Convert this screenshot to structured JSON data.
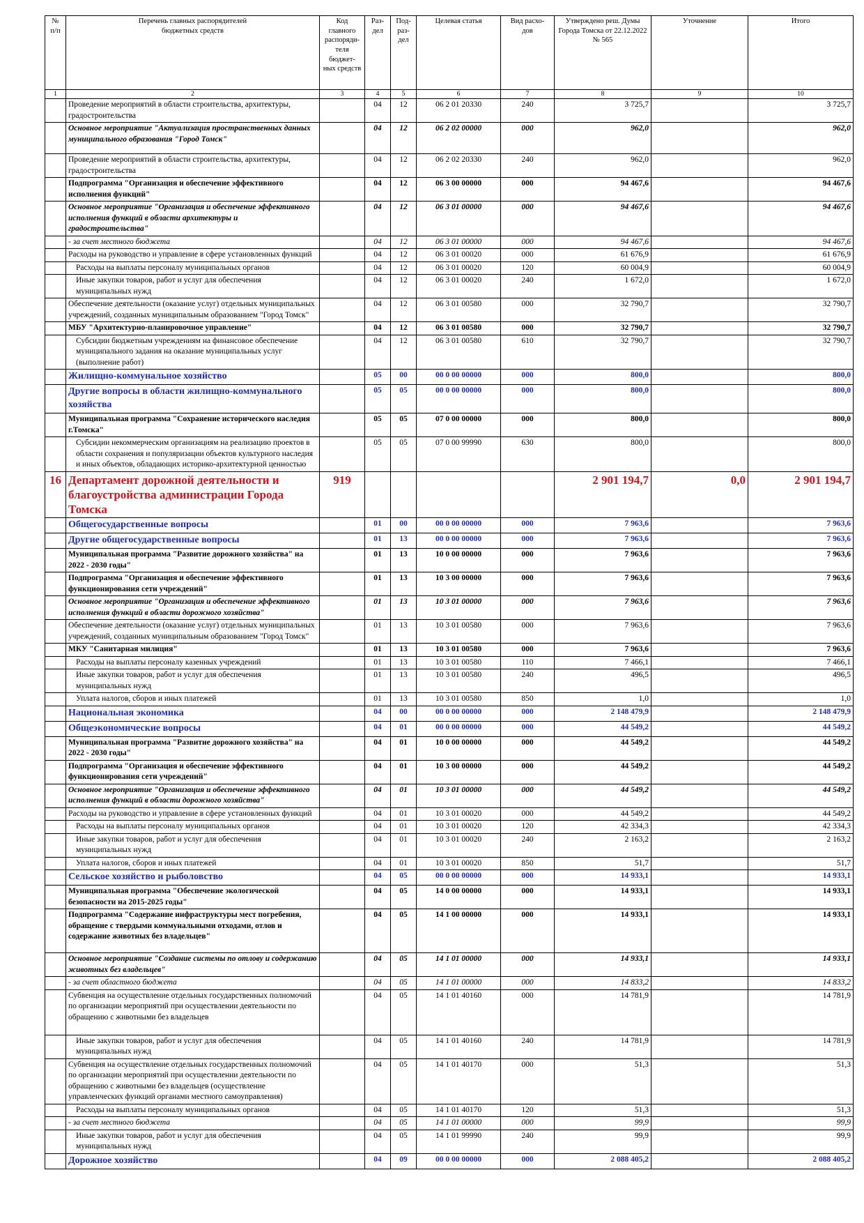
{
  "header": {
    "num": "№\nп/п",
    "name": "Перечень главных распорядителей\nбюджетных средств",
    "code": "Код главного\nраспоряди-\nтеля бюджет-\nных средств",
    "razdel": "Раз-\nдел",
    "podrazdel": "Под-\nраз-\nдел",
    "target": "Целевая статья",
    "vid": "Вид расхо-\nдов",
    "approved": "Утверждено реш. Думы\nГорода Томска от 22.12.2022\n№ 565",
    "clarification": "Уточнение",
    "total": "Итого"
  },
  "column_numbers": [
    "1",
    "2",
    "3",
    "4",
    "5",
    "6",
    "7",
    "8",
    "9",
    "10"
  ],
  "rows": [
    {
      "style": "",
      "num": "",
      "name": "Проведение мероприятий в области строительства, архитектуры, градостроительства",
      "code": "",
      "razdel": "04",
      "podrazdel": "12",
      "target": "06 2 01 20330",
      "vid": "240",
      "approved": "3 725,7",
      "clar": "",
      "total": "3 725,7"
    },
    {
      "style": "bi",
      "num": "",
      "name": "Основное мероприятие \"Актуализация пространственных данных муниципального образования \"Город Томск\"",
      "code": "",
      "razdel": "04",
      "podrazdel": "12",
      "target": "06 2 02 00000",
      "vid": "000",
      "approved": "962,0",
      "clar": "",
      "total": "962,0",
      "h": 42
    },
    {
      "style": "",
      "num": "",
      "name": "Проведение мероприятий в области строительства, архитектуры, градостроительства",
      "code": "",
      "razdel": "04",
      "podrazdel": "12",
      "target": "06 2 02 20330",
      "vid": "240",
      "approved": "962,0",
      "clar": "",
      "total": "962,0"
    },
    {
      "style": "bold",
      "num": "",
      "name": "Подпрограмма \"Организация и обеспечение эффективного исполнения функций\"",
      "code": "",
      "razdel": "04",
      "podrazdel": "12",
      "target": "06 3 00 00000",
      "vid": "000",
      "approved": "94 467,6",
      "clar": "",
      "total": "94 467,6"
    },
    {
      "style": "bi",
      "num": "",
      "name": "Основное мероприятие \"Организация и обеспечение эффективного исполнения функций в области архитектуры и градостроительства\"",
      "code": "",
      "razdel": "04",
      "podrazdel": "12",
      "target": "06 3 01 00000",
      "vid": "000",
      "approved": "94 467,6",
      "clar": "",
      "total": "94 467,6"
    },
    {
      "style": "it",
      "num": "",
      "name": "- за счет местного бюджета",
      "code": "",
      "razdel": "04",
      "podrazdel": "12",
      "target": "06 3 01 00000",
      "vid": "000",
      "approved": "94 467,6",
      "clar": "",
      "total": "94 467,6"
    },
    {
      "style": "",
      "num": "",
      "name": "Расходы на руководство и управление в сфере установленных функций",
      "code": "",
      "razdel": "04",
      "podrazdel": "12",
      "target": "06 3 01 00020",
      "vid": "000",
      "approved": "61 676,9",
      "clar": "",
      "total": "61 676,9"
    },
    {
      "style": "",
      "num": "",
      "name": "Расходы на выплаты персоналу муниципальных органов",
      "code": "",
      "razdel": "04",
      "podrazdel": "12",
      "target": "06 3 01 00020",
      "vid": "120",
      "approved": "60 004,9",
      "clar": "",
      "total": "60 004,9",
      "indent": true
    },
    {
      "style": "",
      "num": "",
      "name": "Иные закупки товаров, работ и услуг для обеспечения муниципальных нужд",
      "code": "",
      "razdel": "04",
      "podrazdel": "12",
      "target": "06 3 01 00020",
      "vid": "240",
      "approved": "1 672,0",
      "clar": "",
      "total": "1 672,0",
      "indent": true
    },
    {
      "style": "",
      "num": "",
      "name": "Обеспечение деятельности (оказание услуг) отдельных муниципальных учреждений, созданных муниципальным образованием \"Город Томск\"",
      "code": "",
      "razdel": "04",
      "podrazdel": "12",
      "target": "06 3 01 00580",
      "vid": "000",
      "approved": "32 790,7",
      "clar": "",
      "total": "32 790,7"
    },
    {
      "style": "bold",
      "num": "",
      "name": "МБУ \"Архитектурно-планировочное управление\"",
      "code": "",
      "razdel": "04",
      "podrazdel": "12",
      "target": "06 3 01 00580",
      "vid": "000",
      "approved": "32 790,7",
      "clar": "",
      "total": "32 790,7"
    },
    {
      "style": "",
      "num": "",
      "name": "Субсидии бюджетным учреждениям на финансовое обеспечение муниципального задания на оказание муниципальных услуг (выполнение работ)",
      "code": "",
      "razdel": "04",
      "podrazdel": "12",
      "target": "06 3 01 00580",
      "vid": "610",
      "approved": "32 790,7",
      "clar": "",
      "total": "32 790,7",
      "indent": true
    },
    {
      "style": "blue",
      "num": "",
      "name": "Жилищно-коммунальное хозяйство",
      "code": "",
      "razdel": "05",
      "podrazdel": "00",
      "target": "00 0 00 00000",
      "vid": "000",
      "approved": "800,0",
      "clar": "",
      "total": "800,0"
    },
    {
      "style": "blue",
      "num": "",
      "name": "Другие вопросы в области жилищно-коммунального хозяйства",
      "code": "",
      "razdel": "05",
      "podrazdel": "05",
      "target": "00 0 00 00000",
      "vid": "000",
      "approved": "800,0",
      "clar": "",
      "total": "800,0"
    },
    {
      "style": "bold",
      "num": "",
      "name": "Муниципальная программа \"Сохранение исторического наследия г.Томска\"",
      "code": "",
      "razdel": "05",
      "podrazdel": "05",
      "target": "07 0 00 00000",
      "vid": "000",
      "approved": "800,0",
      "clar": "",
      "total": "800,0"
    },
    {
      "style": "",
      "num": "",
      "name": "Субсидии некоммерческим организациям на реализацию проектов в области сохранения и популяризации объектов культурного наследия и иных объектов, обладающих историко-архитектурной ценностью",
      "code": "",
      "razdel": "05",
      "podrazdel": "05",
      "target": "07 0 00 99990",
      "vid": "630",
      "approved": "800,0",
      "clar": "",
      "total": "800,0",
      "indent": true
    },
    {
      "style": "red",
      "num": "16",
      "name": "Департамент дорожной деятельности и благоустройства администрации Города Томска",
      "code": "919",
      "razdel": "",
      "podrazdel": "",
      "target": "",
      "vid": "",
      "approved": "2 901 194,7",
      "clar": "0,0",
      "total": "2 901 194,7"
    },
    {
      "style": "blue",
      "num": "",
      "name": "Общегосударственные вопросы",
      "code": "",
      "razdel": "01",
      "podrazdel": "00",
      "target": "00 0 00 00000",
      "vid": "000",
      "approved": "7 963,6",
      "clar": "",
      "total": "7 963,6"
    },
    {
      "style": "blue",
      "num": "",
      "name": "Другие общегосударственные вопросы",
      "code": "",
      "razdel": "01",
      "podrazdel": "13",
      "target": "00 0 00 00000",
      "vid": "000",
      "approved": "7 963,6",
      "clar": "",
      "total": "7 963,6"
    },
    {
      "style": "bold",
      "num": "",
      "name": "Муниципальная программа \"Развитие дорожного хозяйства\" на 2022 - 2030 годы\"",
      "code": "",
      "razdel": "01",
      "podrazdel": "13",
      "target": "10 0 00 00000",
      "vid": "000",
      "approved": "7 963,6",
      "clar": "",
      "total": "7 963,6"
    },
    {
      "style": "bold",
      "num": "",
      "name": "Подпрограмма \"Организация и обеспечение эффективного функционирования сети учреждений\"",
      "code": "",
      "razdel": "01",
      "podrazdel": "13",
      "target": "10 3 00 00000",
      "vid": "000",
      "approved": "7 963,6",
      "clar": "",
      "total": "7 963,6"
    },
    {
      "style": "bi",
      "num": "",
      "name": "Основное мероприятие \"Организация и обеспечение эффективного исполнения функций в области дорожного хозяйства\"",
      "code": "",
      "razdel": "01",
      "podrazdel": "13",
      "target": "10 3 01 00000",
      "vid": "000",
      "approved": "7 963,6",
      "clar": "",
      "total": "7 963,6"
    },
    {
      "style": "",
      "num": "",
      "name": "Обеспечение деятельности (оказание услуг) отдельных муниципальных учреждений, созданных муниципальным образованием \"Город Томск\"",
      "code": "",
      "razdel": "01",
      "podrazdel": "13",
      "target": "10 3 01 00580",
      "vid": "000",
      "approved": "7 963,6",
      "clar": "",
      "total": "7 963,6"
    },
    {
      "style": "bold",
      "num": "",
      "name": "МКУ \"Санитарная милиция\"",
      "code": "",
      "razdel": "01",
      "podrazdel": "13",
      "target": "10 3 01 00580",
      "vid": "000",
      "approved": "7 963,6",
      "clar": "",
      "total": "7 963,6"
    },
    {
      "style": "",
      "num": "",
      "name": "Расходы на выплаты персоналу казенных учреждений",
      "code": "",
      "razdel": "01",
      "podrazdel": "13",
      "target": "10 3 01 00580",
      "vid": "110",
      "approved": "7 466,1",
      "clar": "",
      "total": "7 466,1",
      "indent": true
    },
    {
      "style": "",
      "num": "",
      "name": "Иные закупки товаров, работ и услуг для обеспечения муниципальных нужд",
      "code": "",
      "razdel": "01",
      "podrazdel": "13",
      "target": "10 3 01 00580",
      "vid": "240",
      "approved": "496,5",
      "clar": "",
      "total": "496,5",
      "indent": true
    },
    {
      "style": "",
      "num": "",
      "name": "Уплата налогов, сборов и иных платежей",
      "code": "",
      "razdel": "01",
      "podrazdel": "13",
      "target": "10 3 01 00580",
      "vid": "850",
      "approved": "1,0",
      "clar": "",
      "total": "1,0",
      "indent": true
    },
    {
      "style": "blue",
      "num": "",
      "name": "Национальная экономика",
      "code": "",
      "razdel": "04",
      "podrazdel": "00",
      "target": "00 0 00 00000",
      "vid": "000",
      "approved": "2 148 479,9",
      "clar": "",
      "total": "2 148 479,9"
    },
    {
      "style": "blue",
      "num": "",
      "name": "Общеэкономические вопросы",
      "code": "",
      "razdel": "04",
      "podrazdel": "01",
      "target": "00 0 00 00000",
      "vid": "000",
      "approved": "44 549,2",
      "clar": "",
      "total": "44 549,2"
    },
    {
      "style": "bold",
      "num": "",
      "name": "Муниципальная программа \"Развитие дорожного хозяйства\" на 2022 - 2030 годы\"",
      "code": "",
      "razdel": "04",
      "podrazdel": "01",
      "target": "10 0 00 00000",
      "vid": "000",
      "approved": "44 549,2",
      "clar": "",
      "total": "44 549,2"
    },
    {
      "style": "bold",
      "num": "",
      "name": "Подпрограмма \"Организация и обеспечение эффективного функционирования сети учреждений\"",
      "code": "",
      "razdel": "04",
      "podrazdel": "01",
      "target": "10 3 00 00000",
      "vid": "000",
      "approved": "44 549,2",
      "clar": "",
      "total": "44 549,2"
    },
    {
      "style": "bi",
      "num": "",
      "name": "Основное мероприятие \"Организация и обеспечение эффективного исполнения функций в области дорожного хозяйства\"",
      "code": "",
      "razdel": "04",
      "podrazdel": "01",
      "target": "10 3 01 00000",
      "vid": "000",
      "approved": "44 549,2",
      "clar": "",
      "total": "44 549,2"
    },
    {
      "style": "",
      "num": "",
      "name": "Расходы на руководство и управление в сфере установленных функций",
      "code": "",
      "razdel": "04",
      "podrazdel": "01",
      "target": "10 3 01 00020",
      "vid": "000",
      "approved": "44 549,2",
      "clar": "",
      "total": "44 549,2"
    },
    {
      "style": "",
      "num": "",
      "name": "Расходы на выплаты персоналу муниципальных органов",
      "code": "",
      "razdel": "04",
      "podrazdel": "01",
      "target": "10 3 01 00020",
      "vid": "120",
      "approved": "42 334,3",
      "clar": "",
      "total": "42 334,3",
      "indent": true
    },
    {
      "style": "",
      "num": "",
      "name": "Иные закупки товаров, работ и услуг для обеспечения муниципальных нужд",
      "code": "",
      "razdel": "04",
      "podrazdel": "01",
      "target": "10 3 01 00020",
      "vid": "240",
      "approved": "2 163,2",
      "clar": "",
      "total": "2 163,2",
      "indent": true
    },
    {
      "style": "",
      "num": "",
      "name": "Уплата налогов, сборов и иных платежей",
      "code": "",
      "razdel": "04",
      "podrazdel": "01",
      "target": "10 3 01 00020",
      "vid": "850",
      "approved": "51,7",
      "clar": "",
      "total": "51,7",
      "indent": true
    },
    {
      "style": "blue",
      "num": "",
      "name": "Сельское хозяйство и рыболовство",
      "code": "",
      "razdel": "04",
      "podrazdel": "05",
      "target": "00 0 00 00000",
      "vid": "000",
      "approved": "14 933,1",
      "clar": "",
      "total": "14 933,1"
    },
    {
      "style": "bold",
      "num": "",
      "name": "Муниципальная программа \"Обеспечение экологической безопасности на 2015-2025 годы\"",
      "code": "",
      "razdel": "04",
      "podrazdel": "05",
      "target": "14 0 00 00000",
      "vid": "000",
      "approved": "14 933,1",
      "clar": "",
      "total": "14 933,1"
    },
    {
      "style": "bold",
      "num": "",
      "name": "Подпрограмма \"Содержание инфраструктуры мест погребения, обращение с твердыми коммунальными отходами, отлов и содержание животных без владельцев\"",
      "code": "",
      "razdel": "04",
      "podrazdel": "05",
      "target": "14 1 00 00000",
      "vid": "000",
      "approved": "14 933,1",
      "clar": "",
      "total": "14 933,1",
      "h": 60
    },
    {
      "style": "bi",
      "num": "",
      "name": "Основное мероприятие \"Создание системы по отлову и содержанию животных без владельцев\"",
      "code": "",
      "razdel": "04",
      "podrazdel": "05",
      "target": "14 1 01 00000",
      "vid": "000",
      "approved": "14 933,1",
      "clar": "",
      "total": "14 933,1"
    },
    {
      "style": "it",
      "num": "",
      "name": "- за счет областного бюджета",
      "code": "",
      "razdel": "04",
      "podrazdel": "05",
      "target": "14 1 01 00000",
      "vid": "000",
      "approved": "14 833,2",
      "clar": "",
      "total": "14 833,2"
    },
    {
      "style": "",
      "num": "",
      "name": "Субвенция на осуществление отдельных государственных полномочий по организации мероприятий при осуществлении деятельности по обращению с животными без владельцев",
      "code": "",
      "razdel": "04",
      "podrazdel": "05",
      "target": "14 1 01 40160",
      "vid": "000",
      "approved": "14 781,9",
      "clar": "",
      "total": "14 781,9",
      "h": 62
    },
    {
      "style": "",
      "num": "",
      "name": "Иные закупки товаров, работ и услуг для обеспечения муниципальных нужд",
      "code": "",
      "razdel": "04",
      "podrazdel": "05",
      "target": "14 1 01 40160",
      "vid": "240",
      "approved": "14 781,9",
      "clar": "",
      "total": "14 781,9",
      "indent": true
    },
    {
      "style": "",
      "num": "",
      "name": "Субвенция на осуществление отдельных государственных полномочий по организации мероприятий при осуществлении деятельности по обращению с животными без владельцев (осуществление управленческих функций органами местного самоуправления)",
      "code": "",
      "razdel": "04",
      "podrazdel": "05",
      "target": "14 1 01 40170",
      "vid": "000",
      "approved": "51,3",
      "clar": "",
      "total": "51,3"
    },
    {
      "style": "",
      "num": "",
      "name": "Расходы на выплаты персоналу муниципальных органов",
      "code": "",
      "razdel": "04",
      "podrazdel": "05",
      "target": "14 1 01 40170",
      "vid": "120",
      "approved": "51,3",
      "clar": "",
      "total": "51,3",
      "indent": true
    },
    {
      "style": "it",
      "num": "",
      "name": "- за счет местного бюджета",
      "code": "",
      "razdel": "04",
      "podrazdel": "05",
      "target": "14 1 01 00000",
      "vid": "000",
      "approved": "99,9",
      "clar": "",
      "total": "99,9"
    },
    {
      "style": "",
      "num": "",
      "name": "Иные закупки товаров, работ и услуг для обеспечения муниципальных нужд",
      "code": "",
      "razdel": "04",
      "podrazdel": "05",
      "target": "14 1 01 99990",
      "vid": "240",
      "approved": "99,9",
      "clar": "",
      "total": "99,9",
      "indent": true
    },
    {
      "style": "blue",
      "num": "",
      "name": "Дорожное хозяйство",
      "code": "",
      "razdel": "04",
      "podrazdel": "09",
      "target": "00 0 00 00000",
      "vid": "000",
      "approved": "2 088 405,2",
      "clar": "",
      "total": "2 088 405,2"
    }
  ]
}
